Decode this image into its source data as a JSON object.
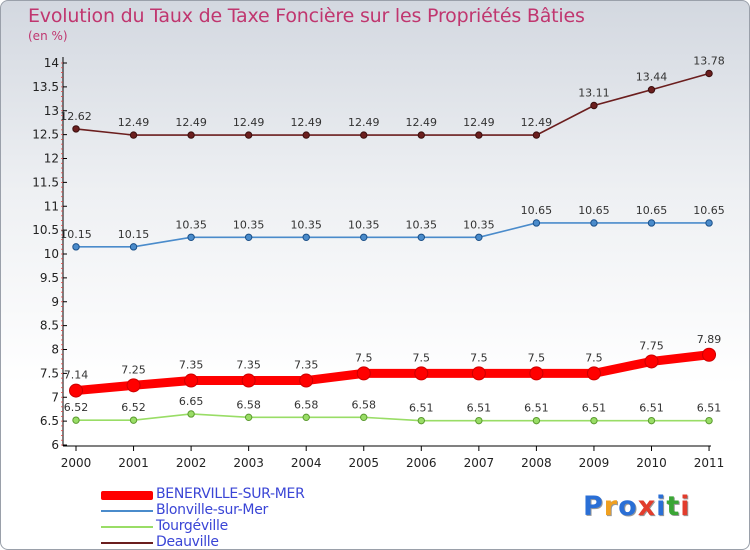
{
  "title": "Evolution du Taux de Taxe Foncière sur les Propriétés Bâties",
  "subtitle": "(en %)",
  "logo": {
    "text": "Proxiti"
  },
  "chart_data": {
    "type": "line",
    "title": "Evolution du Taux de Taxe Foncière sur les Propriétés Bâties",
    "ylabel": "(en %)",
    "xlabel": "",
    "ylim": [
      6,
      14
    ],
    "yticks": [
      "6",
      "6.5",
      "7",
      "7.5",
      "8",
      "8.5",
      "9",
      "9.5",
      "10",
      "10.5",
      "11",
      "11.5",
      "12",
      "12.5",
      "13",
      "13.5",
      "14"
    ],
    "categories": [
      "2000",
      "2001",
      "2002",
      "2003",
      "2004",
      "2005",
      "2006",
      "2007",
      "2008",
      "2009",
      "2010",
      "2011"
    ],
    "grid": false,
    "legend_position": "bottom-left",
    "series": [
      {
        "name": "BENERVILLE-SUR-MER",
        "color": "#ff0000",
        "values": [
          7.14,
          7.25,
          7.35,
          7.35,
          7.35,
          7.5,
          7.5,
          7.5,
          7.5,
          7.5,
          7.75,
          7.89
        ],
        "labels": [
          "7.14",
          "7.25",
          "7.35",
          "7.35",
          "7.35",
          "7.5",
          "7.5",
          "7.5",
          "7.5",
          "7.5",
          "7.75",
          "7.89"
        ]
      },
      {
        "name": "Blonville-sur-Mer",
        "color": "#4a8bcb",
        "values": [
          10.15,
          10.15,
          10.35,
          10.35,
          10.35,
          10.35,
          10.35,
          10.35,
          10.65,
          10.65,
          10.65,
          10.65
        ],
        "labels": [
          "10.15",
          "10.15",
          "10.35",
          "10.35",
          "10.35",
          "10.35",
          "10.35",
          "10.35",
          "10.65",
          "10.65",
          "10.65",
          "10.65"
        ]
      },
      {
        "name": "Tourgéville",
        "color": "#99dd66",
        "values": [
          6.52,
          6.52,
          6.65,
          6.58,
          6.58,
          6.58,
          6.51,
          6.51,
          6.51,
          6.51,
          6.51,
          6.51
        ],
        "labels": [
          "6.52",
          "6.52",
          "6.65",
          "6.58",
          "6.58",
          "6.58",
          "6.51",
          "6.51",
          "6.51",
          "6.51",
          "6.51",
          "6.51"
        ]
      },
      {
        "name": "Deauville",
        "color": "#6b1e1e",
        "values": [
          12.62,
          12.49,
          12.49,
          12.49,
          12.49,
          12.49,
          12.49,
          12.49,
          12.49,
          13.11,
          13.44,
          13.78
        ],
        "labels": [
          "12.62",
          "12.49",
          "12.49",
          "12.49",
          "12.49",
          "12.49",
          "12.49",
          "12.49",
          "12.49",
          "13.11",
          "13.44",
          "13.78"
        ]
      }
    ]
  }
}
